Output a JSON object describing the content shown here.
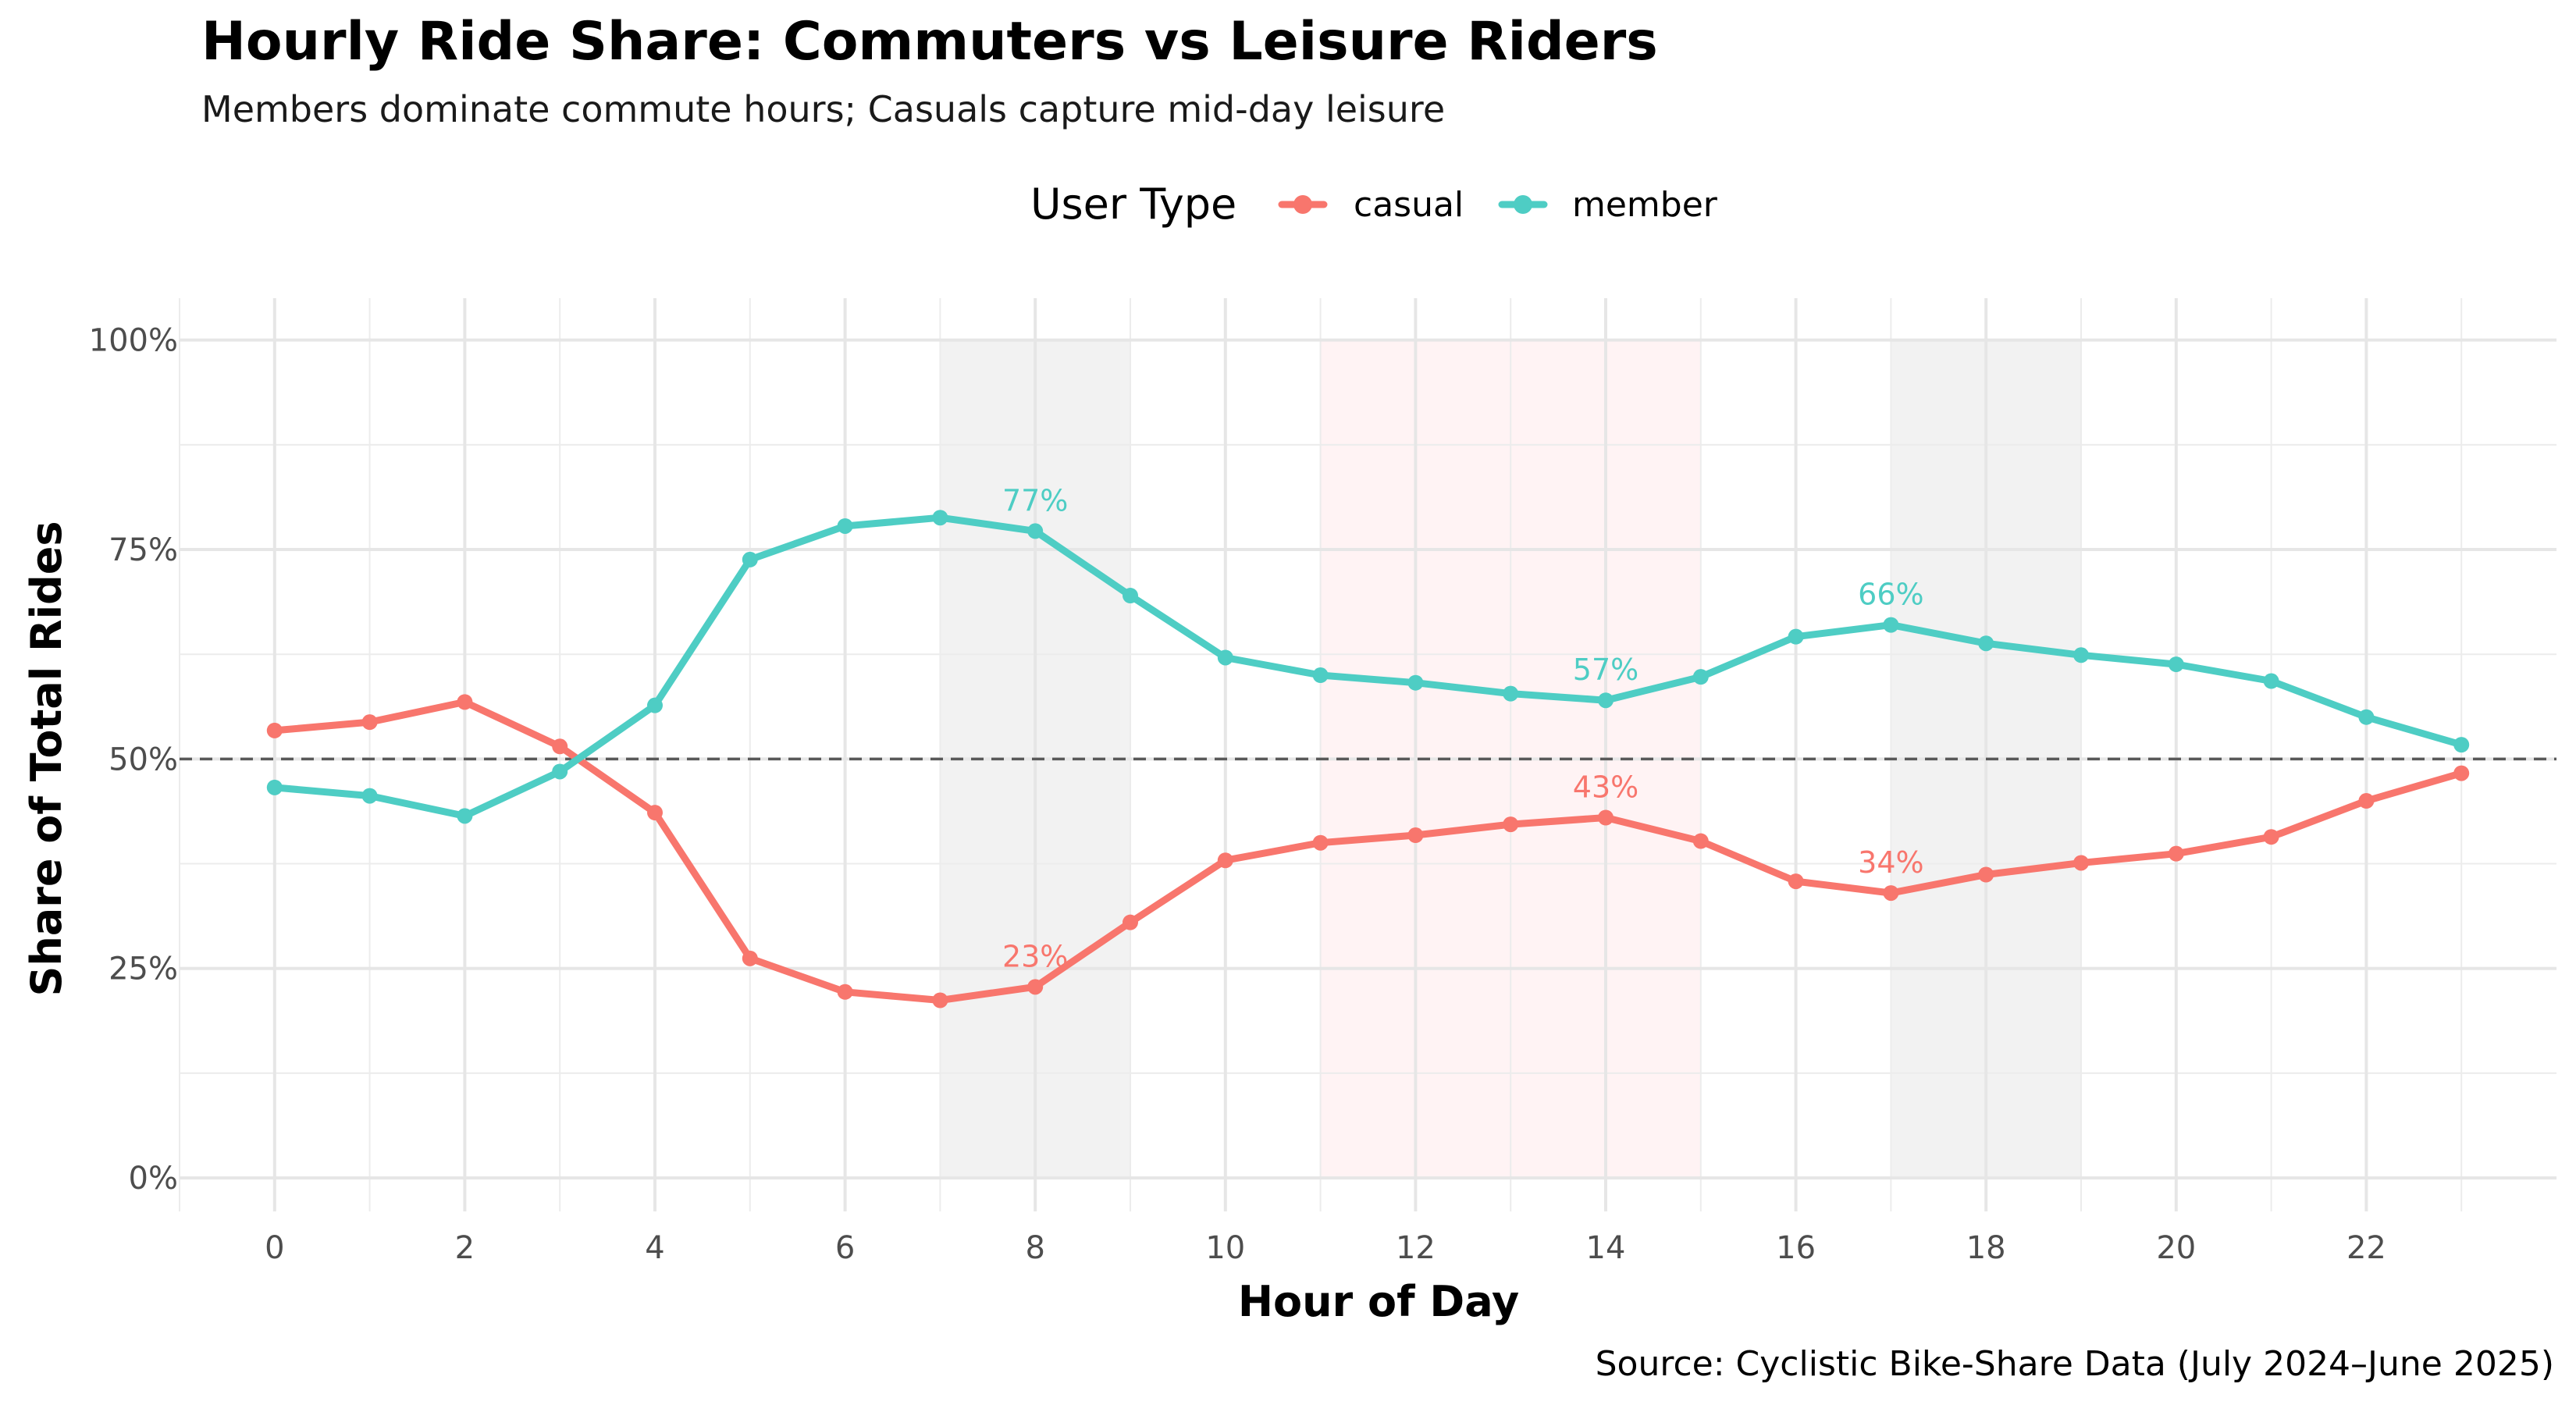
{
  "chart_data": {
    "type": "line",
    "title": "Hourly Ride Share: Commuters vs Leisure Riders",
    "subtitle": "Members dominate commute hours; Casuals capture mid-day leisure",
    "xlabel": "Hour of Day",
    "ylabel": "Share of Total Rides",
    "caption": "Source: Cyclistic Bike-Share Data (July 2024–June 2025)",
    "legend": {
      "title": "User Type",
      "position": "top",
      "items": [
        "casual",
        "member"
      ]
    },
    "x": [
      0,
      1,
      2,
      3,
      4,
      5,
      6,
      7,
      8,
      9,
      10,
      11,
      12,
      13,
      14,
      15,
      16,
      17,
      18,
      19,
      20,
      21,
      22,
      23
    ],
    "xlim": [
      -1.0,
      24.0
    ],
    "ylim": [
      -0.04,
      1.05
    ],
    "x_ticks": [
      {
        "value": 0,
        "label": "0"
      },
      {
        "value": 2,
        "label": "2"
      },
      {
        "value": 4,
        "label": "4"
      },
      {
        "value": 6,
        "label": "6"
      },
      {
        "value": 8,
        "label": "8"
      },
      {
        "value": 10,
        "label": "10"
      },
      {
        "value": 12,
        "label": "12"
      },
      {
        "value": 14,
        "label": "14"
      },
      {
        "value": 16,
        "label": "16"
      },
      {
        "value": 18,
        "label": "18"
      },
      {
        "value": 20,
        "label": "20"
      },
      {
        "value": 22,
        "label": "22"
      }
    ],
    "y_ticks": [
      {
        "value": 0,
        "label": "0%"
      },
      {
        "value": 0.25,
        "label": "25%"
      },
      {
        "value": 0.5,
        "label": "50%"
      },
      {
        "value": 0.75,
        "label": "75%"
      },
      {
        "value": 1.0,
        "label": "100%"
      }
    ],
    "grid": true,
    "reference_line": {
      "y": 0.5,
      "style": "dashed",
      "color": "#595959"
    },
    "shaded_regions": [
      {
        "x_start": 7,
        "x_end": 9,
        "color": "#f2f2f2"
      },
      {
        "x_start": 11,
        "x_end": 15,
        "color": "#fff3f4"
      },
      {
        "x_start": 17,
        "x_end": 19,
        "color": "#f2f2f2"
      }
    ],
    "series": [
      {
        "name": "casual",
        "color": "#F8766D",
        "values": [
          0.534,
          0.544,
          0.568,
          0.515,
          0.436,
          0.262,
          0.222,
          0.212,
          0.228,
          0.305,
          0.379,
          0.4,
          0.409,
          0.422,
          0.43,
          0.402,
          0.354,
          0.34,
          0.362,
          0.376,
          0.387,
          0.407,
          0.45,
          0.483
        ]
      },
      {
        "name": "member",
        "color": "#4ECDC4",
        "values": [
          0.466,
          0.456,
          0.432,
          0.485,
          0.564,
          0.738,
          0.778,
          0.788,
          0.772,
          0.695,
          0.621,
          0.6,
          0.591,
          0.578,
          0.57,
          0.598,
          0.646,
          0.66,
          0.638,
          0.624,
          0.613,
          0.593,
          0.55,
          0.517
        ]
      }
    ],
    "annotations": [
      {
        "x": 8,
        "y": 0.772,
        "text": "77%",
        "color": "#4ECDC4"
      },
      {
        "x": 14,
        "y": 0.57,
        "text": "57%",
        "color": "#4ECDC4"
      },
      {
        "x": 17,
        "y": 0.66,
        "text": "66%",
        "color": "#4ECDC4"
      },
      {
        "x": 8,
        "y": 0.228,
        "text": "23%",
        "color": "#F8766D"
      },
      {
        "x": 14,
        "y": 0.43,
        "text": "43%",
        "color": "#F8766D"
      },
      {
        "x": 17,
        "y": 0.34,
        "text": "34%",
        "color": "#F8766D"
      }
    ]
  }
}
